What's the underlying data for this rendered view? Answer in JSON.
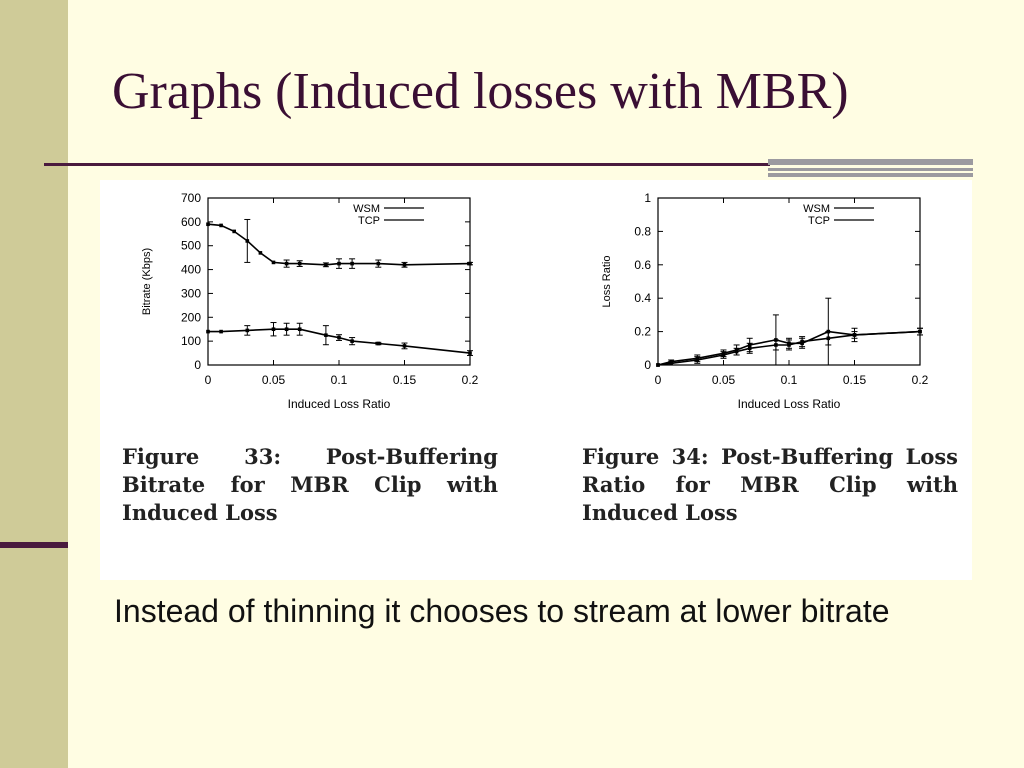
{
  "slide": {
    "title": "Graphs (Induced losses with MBR)",
    "body_text": "Instead of thinning it chooses to stream at lower bitrate",
    "colors": {
      "background": "#fffde3",
      "sidebar": "#cfcb98",
      "title": "#3a0f34",
      "rule": "#4a1a3e"
    }
  },
  "figures": [
    {
      "caption": "Figure 33: Post-Buffering Bitrate for MBR Clip with Induced Loss"
    },
    {
      "caption": "Figure 34: Post-Buffering Loss Ratio for MBR Clip with Induced Loss"
    }
  ],
  "chart_data": [
    {
      "type": "line",
      "title": "",
      "xlabel": "Induced Loss Ratio",
      "ylabel": "Bitrate (Kbps)",
      "xlim": [
        0,
        0.2
      ],
      "ylim": [
        0,
        700
      ],
      "xticks": [
        "0",
        "0.05",
        "0.1",
        "0.15",
        "0.2"
      ],
      "yticks": [
        "0",
        "100",
        "200",
        "300",
        "400",
        "500",
        "600",
        "700"
      ],
      "legend_position": "top-right",
      "grid": false,
      "series": [
        {
          "name": "WSM",
          "x": [
            0,
            0.01,
            0.02,
            0.03,
            0.04,
            0.05,
            0.06,
            0.07,
            0.09,
            0.1,
            0.11,
            0.13,
            0.15,
            0.2
          ],
          "values": [
            590,
            585,
            560,
            520,
            470,
            430,
            425,
            425,
            420,
            425,
            425,
            425,
            420,
            425
          ],
          "errors": [
            0,
            0,
            0,
            90,
            0,
            0,
            15,
            12,
            8,
            20,
            20,
            15,
            10,
            5
          ]
        },
        {
          "name": "TCP",
          "x": [
            0,
            0.01,
            0.03,
            0.05,
            0.06,
            0.07,
            0.09,
            0.1,
            0.11,
            0.13,
            0.15,
            0.2
          ],
          "values": [
            140,
            140,
            145,
            150,
            150,
            150,
            125,
            115,
            100,
            90,
            80,
            50
          ],
          "errors": [
            0,
            0,
            20,
            28,
            25,
            25,
            40,
            12,
            15,
            5,
            12,
            10
          ]
        }
      ]
    },
    {
      "type": "line",
      "title": "",
      "xlabel": "Induced Loss Ratio",
      "ylabel": "Loss Ratio",
      "xlim": [
        0,
        0.2
      ],
      "ylim": [
        0,
        1
      ],
      "xticks": [
        "0",
        "0.05",
        "0.1",
        "0.15",
        "0.2"
      ],
      "yticks": [
        "0",
        "0.2",
        "0.4",
        "0.6",
        "0.8",
        "1"
      ],
      "legend_position": "top-right",
      "grid": false,
      "series": [
        {
          "name": "WSM",
          "x": [
            0,
            0.01,
            0.03,
            0.05,
            0.06,
            0.07,
            0.09,
            0.1,
            0.11,
            0.13,
            0.15,
            0.2
          ],
          "values": [
            0,
            0.02,
            0.04,
            0.07,
            0.09,
            0.12,
            0.15,
            0.13,
            0.13,
            0.2,
            0.18,
            0.2
          ],
          "errors": [
            0,
            0.01,
            0.02,
            0.02,
            0.03,
            0.04,
            0.15,
            0.03,
            0.03,
            0.2,
            0.04,
            0.02
          ]
        },
        {
          "name": "TCP",
          "x": [
            0,
            0.01,
            0.03,
            0.05,
            0.06,
            0.07,
            0.09,
            0.1,
            0.11,
            0.13,
            0.15,
            0.2
          ],
          "values": [
            0,
            0.01,
            0.03,
            0.06,
            0.08,
            0.1,
            0.12,
            0.12,
            0.14,
            0.16,
            0.18,
            0.2
          ],
          "errors": [
            0,
            0.01,
            0.02,
            0.02,
            0.02,
            0.03,
            0.03,
            0.03,
            0.03,
            0.04,
            0.02,
            0.02
          ]
        }
      ]
    }
  ]
}
